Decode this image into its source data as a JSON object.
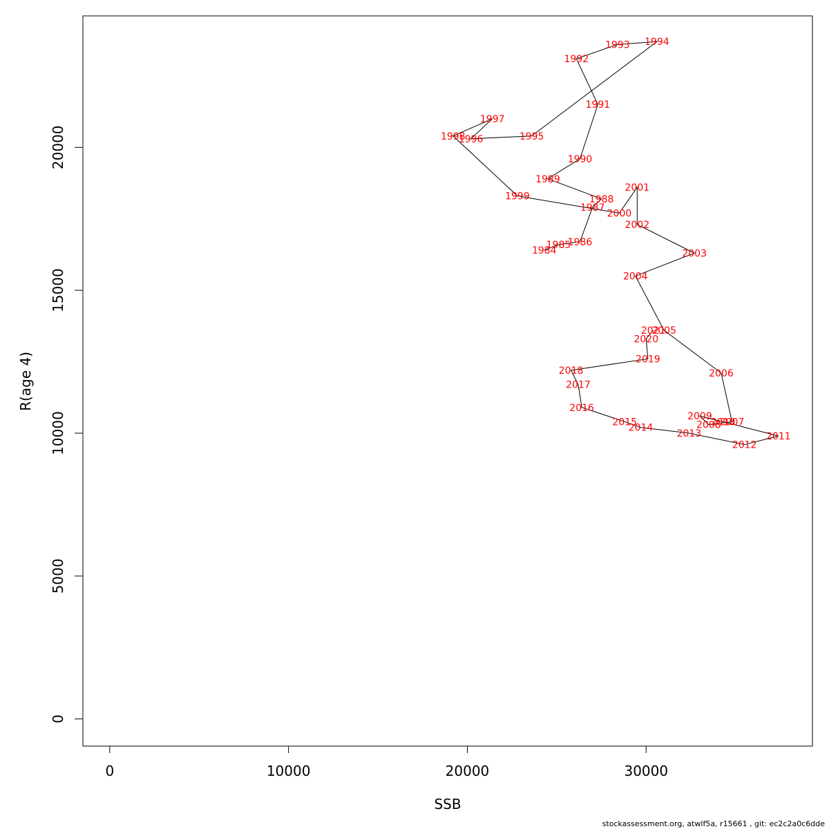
{
  "chart_data": {
    "type": "line",
    "xlabel": "SSB",
    "ylabel": "R(age 4)",
    "xlim": [
      -1500,
      39300
    ],
    "ylim": [
      -950,
      24600
    ],
    "x_ticks": [
      0,
      10000,
      20000,
      30000
    ],
    "y_ticks": [
      0,
      5000,
      10000,
      15000,
      20000
    ],
    "grid": false,
    "line_color": "#000000",
    "label_color": "#ff0000",
    "points": [
      {
        "year": "1984",
        "x": 24300,
        "y": 16400
      },
      {
        "year": "1985",
        "x": 25100,
        "y": 16600
      },
      {
        "year": "1986",
        "x": 26300,
        "y": 16700
      },
      {
        "year": "1987",
        "x": 27000,
        "y": 17900
      },
      {
        "year": "1988",
        "x": 27500,
        "y": 18200
      },
      {
        "year": "1989",
        "x": 24500,
        "y": 18900
      },
      {
        "year": "1990",
        "x": 26300,
        "y": 19600
      },
      {
        "year": "1991",
        "x": 27300,
        "y": 21500
      },
      {
        "year": "1992",
        "x": 26100,
        "y": 23100
      },
      {
        "year": "1993",
        "x": 28400,
        "y": 23600
      },
      {
        "year": "1994",
        "x": 30600,
        "y": 23700
      },
      {
        "year": "1995",
        "x": 23600,
        "y": 20400
      },
      {
        "year": "1996",
        "x": 20200,
        "y": 20300
      },
      {
        "year": "1997",
        "x": 21400,
        "y": 21000
      },
      {
        "year": "1998",
        "x": 19200,
        "y": 20400
      },
      {
        "year": "1999",
        "x": 22800,
        "y": 18300
      },
      {
        "year": "2000",
        "x": 28500,
        "y": 17700
      },
      {
        "year": "2001",
        "x": 29500,
        "y": 18600
      },
      {
        "year": "2002",
        "x": 29500,
        "y": 17300
      },
      {
        "year": "2003",
        "x": 32700,
        "y": 16300
      },
      {
        "year": "2004",
        "x": 29400,
        "y": 15500
      },
      {
        "year": "2005",
        "x": 31000,
        "y": 13600
      },
      {
        "year": "2006",
        "x": 34200,
        "y": 12100
      },
      {
        "year": "2007",
        "x": 34800,
        "y": 10400
      },
      {
        "year": "2008",
        "x": 33500,
        "y": 10300
      },
      {
        "year": "2009",
        "x": 33000,
        "y": 10600
      },
      {
        "year": "2010",
        "x": 34300,
        "y": 10400
      },
      {
        "year": "2011",
        "x": 37400,
        "y": 9900
      },
      {
        "year": "2012",
        "x": 35500,
        "y": 9600
      },
      {
        "year": "2013",
        "x": 32400,
        "y": 10000
      },
      {
        "year": "2014",
        "x": 29700,
        "y": 10200
      },
      {
        "year": "2015",
        "x": 28800,
        "y": 10400
      },
      {
        "year": "2016",
        "x": 26400,
        "y": 10900
      },
      {
        "year": "2017",
        "x": 26200,
        "y": 11700
      },
      {
        "year": "2018",
        "x": 25800,
        "y": 12200
      },
      {
        "year": "2019",
        "x": 30100,
        "y": 12600
      },
      {
        "year": "2020",
        "x": 30000,
        "y": 13300
      },
      {
        "year": "2021",
        "x": 30400,
        "y": 13600
      }
    ]
  },
  "footer_text": "stockassessment.org, atwlf5a, r15661 , git: ec2c2a0c6dde"
}
